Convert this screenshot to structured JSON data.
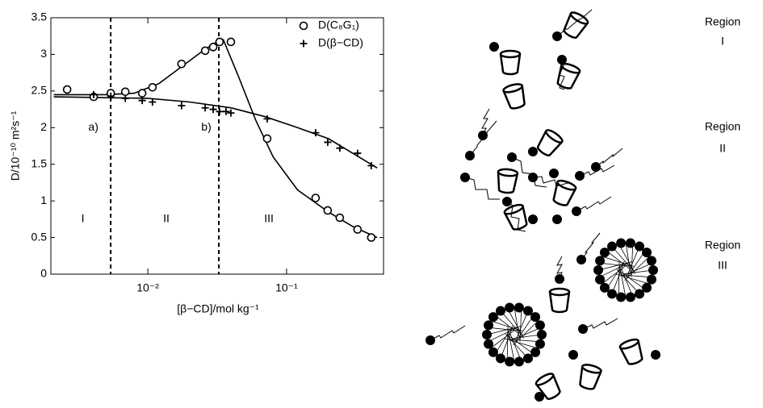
{
  "chart_data": {
    "type": "scatter",
    "x_label": "[β−CD]/mol kg⁻¹",
    "y_label": "D/10⁻¹⁰ m²s⁻¹",
    "log_x": true,
    "xlim": [
      0.002,
      0.5
    ],
    "ylim": [
      0,
      3.5
    ],
    "xticks": [
      {
        "value": 0.01,
        "label": "10⁻²"
      },
      {
        "value": 0.1,
        "label": "10⁻¹"
      }
    ],
    "yticks": [
      0,
      0.5,
      1,
      1.5,
      2,
      2.5,
      3,
      3.5
    ],
    "legend": "upper right",
    "series": [
      {
        "name": "D(C₈G₁)",
        "marker": "circle",
        "color": "#000000",
        "x": [
          0.00262,
          0.00407,
          0.00541,
          0.00688,
          0.00911,
          0.0108,
          0.0175,
          0.0259,
          0.0296,
          0.0329,
          0.0397,
          0.0725,
          0.162,
          0.198,
          0.242,
          0.325,
          0.408
        ],
        "values": [
          2.52,
          2.42,
          2.47,
          2.49,
          2.47,
          2.55,
          2.87,
          3.05,
          3.1,
          3.17,
          3.17,
          1.85,
          1.04,
          0.87,
          0.77,
          0.61,
          0.5
        ]
      },
      {
        "name": "D(β−CD)",
        "marker": "plus",
        "color": "#000000",
        "x": [
          0.00407,
          0.00541,
          0.00688,
          0.00911,
          0.0108,
          0.0175,
          0.0259,
          0.0296,
          0.0329,
          0.0366,
          0.0397,
          0.0725,
          0.162,
          0.198,
          0.242,
          0.325,
          0.408
        ],
        "values": [
          2.45,
          2.43,
          2.4,
          2.37,
          2.35,
          2.3,
          2.27,
          2.25,
          2.22,
          2.22,
          2.2,
          2.12,
          1.93,
          1.8,
          1.72,
          1.65,
          1.48
        ]
      }
    ],
    "fit_curves": [
      {
        "x": [
          0.0021,
          0.005,
          0.008,
          0.012,
          0.018,
          0.025,
          0.03,
          0.035,
          0.045,
          0.06,
          0.08,
          0.12,
          0.2,
          0.3,
          0.45
        ],
        "values": [
          2.45,
          2.45,
          2.47,
          2.6,
          2.85,
          3.05,
          3.15,
          3.2,
          2.7,
          2.1,
          1.6,
          1.15,
          0.85,
          0.65,
          0.5
        ]
      },
      {
        "x": [
          0.0021,
          0.01,
          0.02,
          0.04,
          0.07,
          0.12,
          0.2,
          0.3,
          0.45
        ],
        "values": [
          2.42,
          2.4,
          2.35,
          2.27,
          2.15,
          2.0,
          1.85,
          1.65,
          1.45
        ]
      }
    ],
    "vlines": [
      0.0054,
      0.0325
    ],
    "annotations": [
      {
        "text": "a)",
        "x": 0.00405,
        "y": 2.0
      },
      {
        "text": "b)",
        "x": 0.0264,
        "y": 2.0
      },
      {
        "text": "I",
        "x": 0.0034,
        "y": 0.75
      },
      {
        "text": "II",
        "x": 0.0136,
        "y": 0.75
      },
      {
        "text": "III",
        "x": 0.0746,
        "y": 0.75
      }
    ]
  },
  "schematic": {
    "regions": [
      {
        "label": "Region",
        "numeral": "I"
      },
      {
        "label": "Region",
        "numeral": "II"
      },
      {
        "label": "Region",
        "numeral": "III"
      }
    ]
  }
}
